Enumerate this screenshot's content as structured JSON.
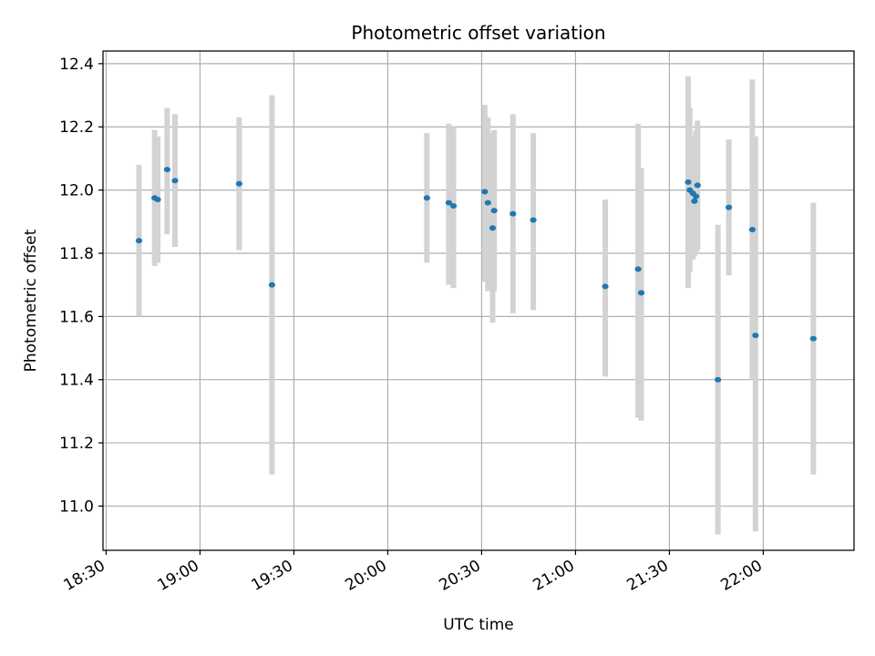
{
  "chart_data": {
    "type": "scatter",
    "title": "Photometric offset variation",
    "xlabel": "UTC time",
    "ylabel": "Photometric offset",
    "x_ticks": [
      "18:30",
      "19:00",
      "19:30",
      "20:00",
      "20:30",
      "21:00",
      "21:30",
      "22:00"
    ],
    "y_ticks": [
      "11.0",
      "11.2",
      "11.4",
      "11.6",
      "11.8",
      "12.0",
      "12.2",
      "12.4"
    ],
    "xlim": [
      "18:29",
      "22:29"
    ],
    "ylim": [
      10.86,
      12.44
    ],
    "grid": true,
    "colors": {
      "point": "#1f77b4",
      "errorbar": "#d3d3d3",
      "grid": "#b0b0b0"
    },
    "series": [
      {
        "points": [
          {
            "t": "18:40:30",
            "y": 11.84,
            "lo": 11.6,
            "hi": 12.08
          },
          {
            "t": "18:45:30",
            "y": 11.975,
            "lo": 11.76,
            "hi": 12.19
          },
          {
            "t": "18:46:30",
            "y": 11.97,
            "lo": 11.77,
            "hi": 12.17
          },
          {
            "t": "18:49:30",
            "y": 12.065,
            "lo": 11.86,
            "hi": 12.26
          },
          {
            "t": "18:52:00",
            "y": 12.03,
            "lo": 11.82,
            "hi": 12.24
          },
          {
            "t": "19:12:30",
            "y": 12.02,
            "lo": 11.81,
            "hi": 12.23
          },
          {
            "t": "19:23:00",
            "y": 11.7,
            "lo": 11.1,
            "hi": 12.3
          },
          {
            "t": "20:12:30",
            "y": 11.975,
            "lo": 11.77,
            "hi": 12.18
          },
          {
            "t": "20:19:30",
            "y": 11.96,
            "lo": 11.7,
            "hi": 12.21
          },
          {
            "t": "20:21:00",
            "y": 11.95,
            "lo": 11.69,
            "hi": 12.2
          },
          {
            "t": "20:31:00",
            "y": 11.995,
            "lo": 11.71,
            "hi": 12.27
          },
          {
            "t": "20:32:00",
            "y": 11.96,
            "lo": 11.68,
            "hi": 12.23
          },
          {
            "t": "20:33:30",
            "y": 11.88,
            "lo": 11.58,
            "hi": 12.18
          },
          {
            "t": "20:34:00",
            "y": 11.935,
            "lo": 11.68,
            "hi": 12.19
          },
          {
            "t": "20:40:00",
            "y": 11.925,
            "lo": 11.61,
            "hi": 12.24
          },
          {
            "t": "20:46:30",
            "y": 11.905,
            "lo": 11.62,
            "hi": 12.18
          },
          {
            "t": "21:09:30",
            "y": 11.695,
            "lo": 11.41,
            "hi": 11.97
          },
          {
            "t": "21:20:00",
            "y": 11.75,
            "lo": 11.28,
            "hi": 12.21
          },
          {
            "t": "21:21:00",
            "y": 11.675,
            "lo": 11.27,
            "hi": 12.07
          },
          {
            "t": "21:36:00",
            "y": 12.025,
            "lo": 11.69,
            "hi": 12.36
          },
          {
            "t": "21:36:30",
            "y": 12.0,
            "lo": 11.74,
            "hi": 12.26
          },
          {
            "t": "21:37:30",
            "y": 11.99,
            "lo": 11.78,
            "hi": 12.17
          },
          {
            "t": "21:38:00",
            "y": 11.965,
            "lo": 11.79,
            "hi": 12.14
          },
          {
            "t": "21:38:30",
            "y": 11.98,
            "lo": 11.8,
            "hi": 12.19
          },
          {
            "t": "21:39:00",
            "y": 12.015,
            "lo": 11.81,
            "hi": 12.22
          },
          {
            "t": "21:45:30",
            "y": 11.4,
            "lo": 10.91,
            "hi": 11.89
          },
          {
            "t": "21:49:00",
            "y": 11.945,
            "lo": 11.73,
            "hi": 12.16
          },
          {
            "t": "21:56:30",
            "y": 11.875,
            "lo": 11.4,
            "hi": 12.35
          },
          {
            "t": "21:57:30",
            "y": 11.54,
            "lo": 10.92,
            "hi": 12.17
          },
          {
            "t": "22:16:00",
            "y": 11.53,
            "lo": 11.1,
            "hi": 11.96
          }
        ]
      }
    ]
  }
}
